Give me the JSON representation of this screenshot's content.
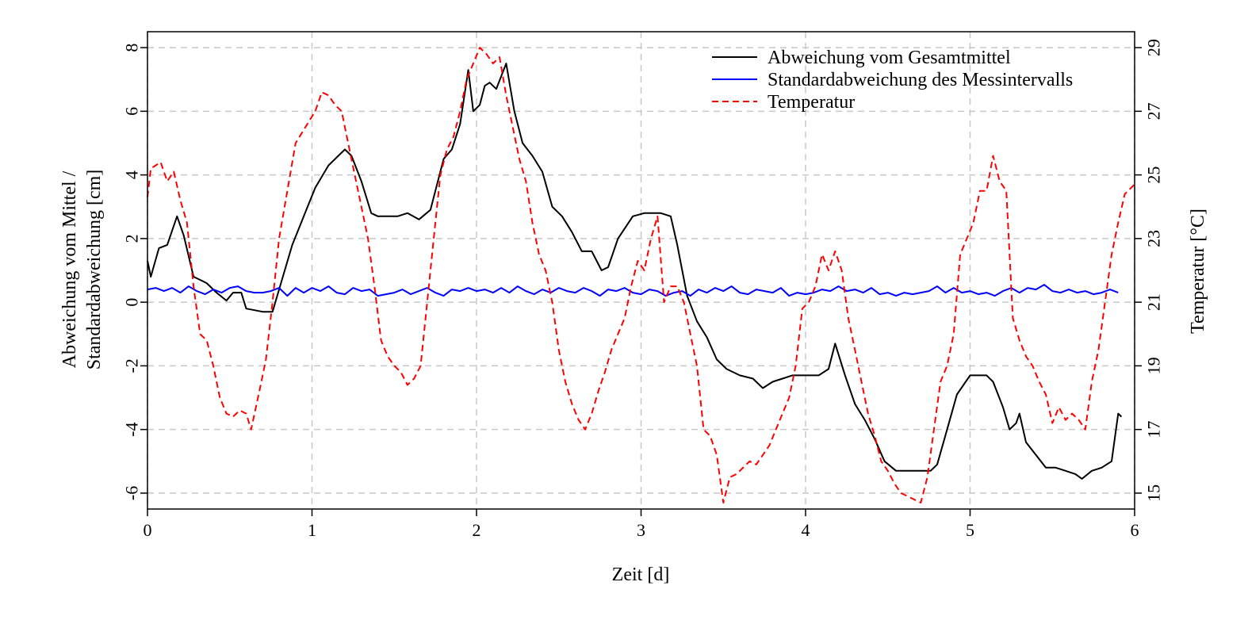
{
  "chart_data": {
    "type": "line",
    "xlabel": "Zeit [d]",
    "ylabel_left_line1": "Abweichung vom Mittel /",
    "ylabel_left_line2": "Standardabweichung [cm]",
    "ylabel_right": "Temperatur [°C]",
    "xlim": [
      0,
      6
    ],
    "ylim_left": [
      -6.5,
      8.5
    ],
    "ylim_right": [
      14.5,
      29.5
    ],
    "x_ticks": [
      0,
      1,
      2,
      3,
      4,
      5,
      6
    ],
    "y_left_ticks": [
      -6,
      -4,
      -2,
      0,
      2,
      4,
      6,
      8
    ],
    "y_right_ticks": [
      15,
      17,
      19,
      21,
      23,
      25,
      27,
      29
    ],
    "grid": true,
    "legend_position": "top-right",
    "series": [
      {
        "name": "Abweichung vom Gesamtmittel",
        "axis": "left",
        "color": "#000000",
        "style": "solid",
        "x": [
          0,
          0.02,
          0.07,
          0.12,
          0.18,
          0.22,
          0.28,
          0.32,
          0.36,
          0.42,
          0.48,
          0.52,
          0.57,
          0.6,
          0.7,
          0.76,
          0.8,
          0.88,
          0.95,
          1.02,
          1.1,
          1.16,
          1.2,
          1.24,
          1.3,
          1.36,
          1.4,
          1.46,
          1.52,
          1.58,
          1.65,
          1.72,
          1.8,
          1.85,
          1.9,
          1.95,
          1.98,
          2.02,
          2.05,
          2.08,
          2.12,
          2.18,
          2.23,
          2.28,
          2.34,
          2.4,
          2.46,
          2.52,
          2.58,
          2.64,
          2.7,
          2.76,
          2.8,
          2.86,
          2.95,
          3.02,
          3.06,
          3.12,
          3.18,
          3.22,
          3.28,
          3.34,
          3.4,
          3.46,
          3.52,
          3.6,
          3.68,
          3.74,
          3.8,
          3.86,
          3.92,
          4.0,
          4.08,
          4.14,
          4.18,
          4.24,
          4.3,
          4.36,
          4.42,
          4.48,
          4.55,
          4.62,
          4.7,
          4.76,
          4.8,
          4.86,
          4.92,
          5.0,
          5.05,
          5.1,
          5.14,
          5.2,
          5.24,
          5.28,
          5.3,
          5.34,
          5.4,
          5.46,
          5.52,
          5.58,
          5.64,
          5.68,
          5.74,
          5.8,
          5.86,
          5.9,
          5.92
        ],
        "y": [
          1.3,
          0.8,
          1.7,
          1.8,
          2.7,
          2.1,
          0.8,
          0.7,
          0.6,
          0.3,
          0.05,
          0.3,
          0.3,
          -0.2,
          -0.3,
          -0.3,
          0.4,
          1.8,
          2.7,
          3.6,
          4.3,
          4.6,
          4.8,
          4.6,
          3.8,
          2.8,
          2.7,
          2.7,
          2.7,
          2.8,
          2.6,
          2.9,
          4.5,
          4.8,
          5.6,
          7.3,
          6.0,
          6.2,
          6.8,
          6.9,
          6.7,
          7.5,
          6.0,
          5.0,
          4.6,
          4.1,
          3.0,
          2.7,
          2.2,
          1.6,
          1.6,
          1.0,
          1.1,
          2.0,
          2.7,
          2.8,
          2.8,
          2.8,
          2.7,
          1.8,
          0.2,
          -0.6,
          -1.1,
          -1.8,
          -2.1,
          -2.3,
          -2.4,
          -2.7,
          -2.5,
          -2.4,
          -2.3,
          -2.3,
          -2.3,
          -2.1,
          -1.3,
          -2.3,
          -3.2,
          -3.7,
          -4.3,
          -5.0,
          -5.3,
          -5.3,
          -5.3,
          -5.3,
          -5.1,
          -4.0,
          -2.9,
          -2.3,
          -2.3,
          -2.3,
          -2.5,
          -3.3,
          -4.0,
          -3.8,
          -3.5,
          -4.4,
          -4.8,
          -5.2,
          -5.2,
          -5.3,
          -5.4,
          -5.55,
          -5.3,
          -5.2,
          -5.0,
          -3.5,
          -3.6
        ]
      },
      {
        "name": "Standardabweichung des Messintervalls",
        "axis": "left",
        "color": "#0000ff",
        "style": "solid",
        "x": [
          0,
          0.05,
          0.1,
          0.15,
          0.2,
          0.25,
          0.3,
          0.35,
          0.4,
          0.45,
          0.5,
          0.55,
          0.6,
          0.65,
          0.7,
          0.75,
          0.8,
          0.85,
          0.9,
          0.95,
          1.0,
          1.05,
          1.1,
          1.15,
          1.2,
          1.25,
          1.3,
          1.35,
          1.4,
          1.45,
          1.5,
          1.55,
          1.6,
          1.65,
          1.7,
          1.75,
          1.8,
          1.85,
          1.9,
          1.95,
          2.0,
          2.05,
          2.1,
          2.15,
          2.2,
          2.25,
          2.3,
          2.35,
          2.4,
          2.45,
          2.5,
          2.55,
          2.6,
          2.65,
          2.7,
          2.75,
          2.8,
          2.85,
          2.9,
          2.95,
          3.0,
          3.05,
          3.1,
          3.15,
          3.2,
          3.25,
          3.3,
          3.35,
          3.4,
          3.45,
          3.5,
          3.55,
          3.6,
          3.65,
          3.7,
          3.75,
          3.8,
          3.85,
          3.9,
          3.95,
          4.0,
          4.05,
          4.1,
          4.15,
          4.2,
          4.25,
          4.3,
          4.35,
          4.4,
          4.45,
          4.5,
          4.55,
          4.6,
          4.65,
          4.7,
          4.75,
          4.8,
          4.85,
          4.9,
          4.95,
          5.0,
          5.05,
          5.1,
          5.15,
          5.2,
          5.25,
          5.3,
          5.35,
          5.4,
          5.45,
          5.5,
          5.55,
          5.6,
          5.65,
          5.7,
          5.75,
          5.8,
          5.85,
          5.9
        ],
        "y": [
          0.4,
          0.45,
          0.35,
          0.45,
          0.3,
          0.5,
          0.35,
          0.25,
          0.4,
          0.3,
          0.45,
          0.5,
          0.35,
          0.3,
          0.3,
          0.35,
          0.45,
          0.2,
          0.45,
          0.3,
          0.45,
          0.35,
          0.5,
          0.3,
          0.25,
          0.45,
          0.35,
          0.4,
          0.2,
          0.25,
          0.3,
          0.4,
          0.25,
          0.35,
          0.45,
          0.3,
          0.2,
          0.4,
          0.35,
          0.45,
          0.35,
          0.4,
          0.3,
          0.45,
          0.3,
          0.5,
          0.35,
          0.25,
          0.4,
          0.3,
          0.45,
          0.35,
          0.3,
          0.45,
          0.35,
          0.2,
          0.4,
          0.35,
          0.45,
          0.3,
          0.25,
          0.4,
          0.35,
          0.2,
          0.3,
          0.35,
          0.2,
          0.4,
          0.3,
          0.45,
          0.35,
          0.5,
          0.3,
          0.25,
          0.4,
          0.35,
          0.3,
          0.45,
          0.2,
          0.3,
          0.25,
          0.3,
          0.4,
          0.35,
          0.5,
          0.35,
          0.4,
          0.3,
          0.45,
          0.25,
          0.3,
          0.2,
          0.3,
          0.25,
          0.3,
          0.35,
          0.5,
          0.3,
          0.45,
          0.3,
          0.35,
          0.25,
          0.3,
          0.2,
          0.35,
          0.45,
          0.3,
          0.45,
          0.4,
          0.55,
          0.35,
          0.3,
          0.4,
          0.3,
          0.35,
          0.25,
          0.3,
          0.4,
          0.3
        ]
      },
      {
        "name": "Temperatur",
        "axis": "right",
        "color": "#ff0000",
        "style": "dashed",
        "x": [
          0,
          0.02,
          0.05,
          0.08,
          0.12,
          0.16,
          0.2,
          0.24,
          0.28,
          0.32,
          0.36,
          0.4,
          0.44,
          0.48,
          0.52,
          0.56,
          0.6,
          0.63,
          0.68,
          0.72,
          0.76,
          0.8,
          0.85,
          0.9,
          0.96,
          1.02,
          1.06,
          1.1,
          1.14,
          1.18,
          1.22,
          1.26,
          1.3,
          1.34,
          1.38,
          1.42,
          1.46,
          1.5,
          1.54,
          1.58,
          1.62,
          1.66,
          1.7,
          1.74,
          1.78,
          1.82,
          1.86,
          1.9,
          1.94,
          1.98,
          2.02,
          2.06,
          2.1,
          2.14,
          2.18,
          2.22,
          2.26,
          2.3,
          2.34,
          2.38,
          2.42,
          2.46,
          2.5,
          2.54,
          2.58,
          2.62,
          2.66,
          2.7,
          2.74,
          2.78,
          2.82,
          2.86,
          2.9,
          2.94,
          2.98,
          3.02,
          3.06,
          3.1,
          3.14,
          3.18,
          3.22,
          3.26,
          3.3,
          3.34,
          3.38,
          3.42,
          3.46,
          3.5,
          3.54,
          3.58,
          3.62,
          3.66,
          3.7,
          3.74,
          3.78,
          3.82,
          3.86,
          3.9,
          3.94,
          3.98,
          4.02,
          4.06,
          4.1,
          4.14,
          4.18,
          4.22,
          4.26,
          4.3,
          4.34,
          4.38,
          4.42,
          4.46,
          4.5,
          4.54,
          4.58,
          4.62,
          4.66,
          4.7,
          4.74,
          4.78,
          4.82,
          4.86,
          4.9,
          4.94,
          4.98,
          5.02,
          5.06,
          5.1,
          5.14,
          5.18,
          5.22,
          5.26,
          5.3,
          5.34,
          5.38,
          5.42,
          5.46,
          5.5,
          5.54,
          5.58,
          5.62,
          5.66,
          5.7,
          5.74,
          5.78,
          5.82,
          5.86,
          5.9,
          5.94,
          6.0
        ],
        "y": [
          24.3,
          25.2,
          25.3,
          25.4,
          24.8,
          25.1,
          24.2,
          23.5,
          21.5,
          20.0,
          19.8,
          19.0,
          18.0,
          17.5,
          17.4,
          17.6,
          17.5,
          17.0,
          18.2,
          19.2,
          21.0,
          23.0,
          24.5,
          26.0,
          26.5,
          27.0,
          27.6,
          27.5,
          27.2,
          27.0,
          26.0,
          25.0,
          24.0,
          23.0,
          21.5,
          19.8,
          19.3,
          19.0,
          18.8,
          18.4,
          18.6,
          19.0,
          21.0,
          23.0,
          25.0,
          25.8,
          26.2,
          27.0,
          28.0,
          28.5,
          29.0,
          28.8,
          28.5,
          28.7,
          27.5,
          26.5,
          25.5,
          24.8,
          23.5,
          22.5,
          22.0,
          21.0,
          19.5,
          18.5,
          17.8,
          17.3,
          17.0,
          17.5,
          18.2,
          18.8,
          19.5,
          20.0,
          20.5,
          21.5,
          22.3,
          22.0,
          23.0,
          23.7,
          21.0,
          21.5,
          21.5,
          21.0,
          20.0,
          19.0,
          17.0,
          16.8,
          16.2,
          14.7,
          15.5,
          15.6,
          15.8,
          16.0,
          15.9,
          16.2,
          16.5,
          17.0,
          17.5,
          18.0,
          19.0,
          20.8,
          21.0,
          21.5,
          22.5,
          22.0,
          22.6,
          22.0,
          20.5,
          19.5,
          18.5,
          17.5,
          16.8,
          16.0,
          15.7,
          15.3,
          15.0,
          14.9,
          14.8,
          14.7,
          15.5,
          17.0,
          18.5,
          19.0,
          20.0,
          22.5,
          23.0,
          23.5,
          24.5,
          24.5,
          25.6,
          24.8,
          24.5,
          20.5,
          19.8,
          19.3,
          19.0,
          18.5,
          18.1,
          17.2,
          17.7,
          17.3,
          17.5,
          17.3,
          17.0,
          18.5,
          19.5,
          21.0,
          22.5,
          23.5,
          24.4,
          24.7
        ]
      }
    ]
  }
}
